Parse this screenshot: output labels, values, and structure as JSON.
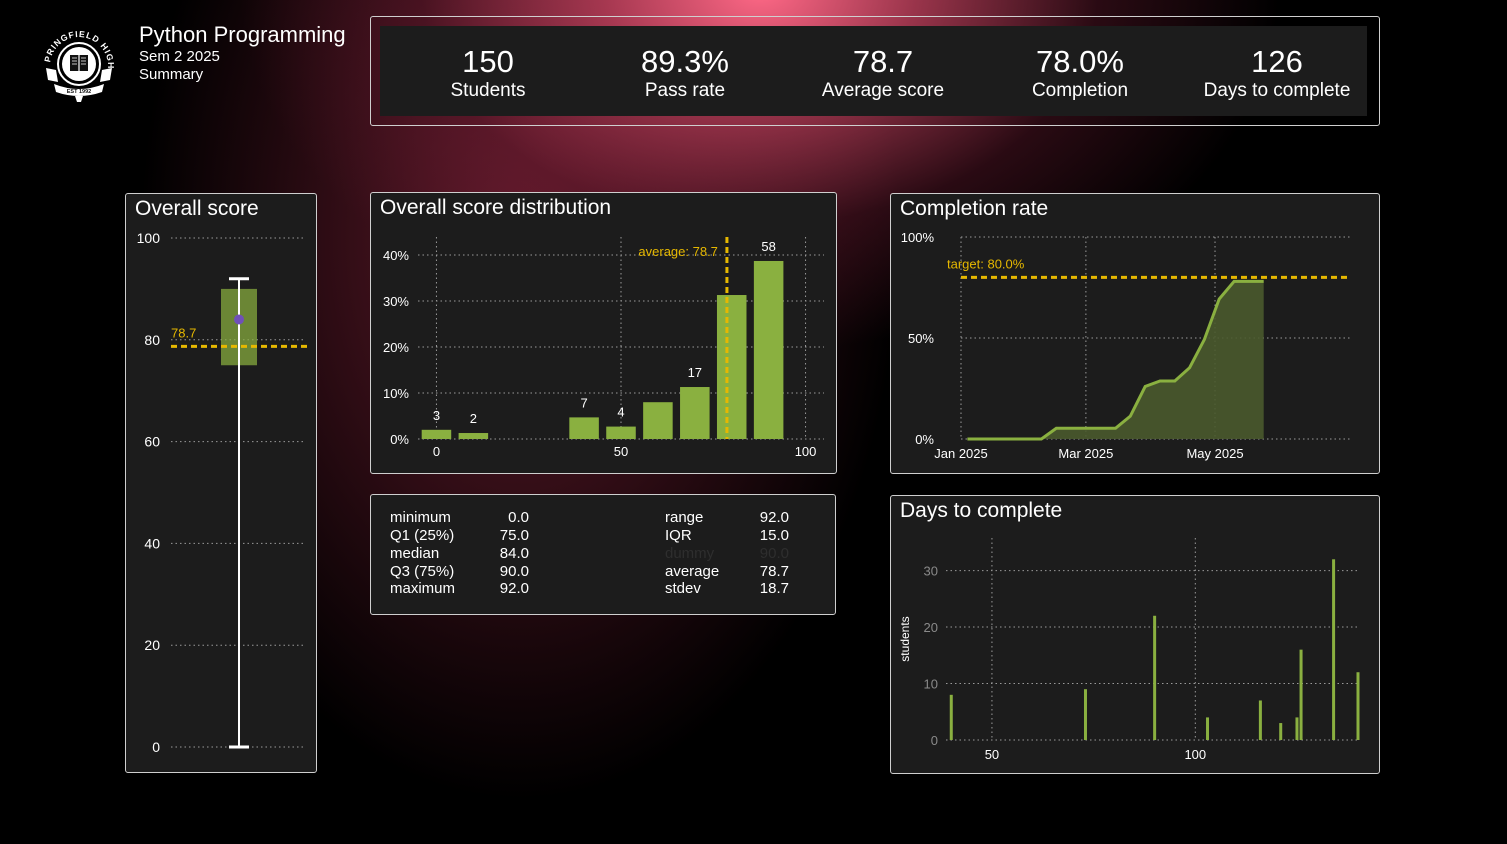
{
  "header": {
    "title": "Python Programming",
    "semester": "Sem 2 2025",
    "subtitle": "Summary",
    "logo_text": "SPRINGFIELD HIGH",
    "logo_est": "EST 1992"
  },
  "kpis": [
    {
      "value": "150",
      "label": "Students"
    },
    {
      "value": "89.3%",
      "label": "Pass rate"
    },
    {
      "value": "78.7",
      "label": "Average score"
    },
    {
      "value": "78.0%",
      "label": "Completion"
    },
    {
      "value": "126",
      "label": "Days to complete"
    }
  ],
  "colors": {
    "bar": "#8ab040",
    "area": "#4a5a2e",
    "target": "#e6b800",
    "median_dot": "#7050b8",
    "grid": "#9a9a9a",
    "panel_bg": "#1c1c1c"
  },
  "stats": {
    "left": [
      {
        "label": "minimum",
        "value": "0.0"
      },
      {
        "label": "Q1 (25%)",
        "value": "75.0"
      },
      {
        "label": "median",
        "value": "84.0"
      },
      {
        "label": "Q3 (75%)",
        "value": "90.0"
      },
      {
        "label": "maximum",
        "value": "92.0"
      }
    ],
    "right": [
      {
        "label": "range",
        "value": "92.0"
      },
      {
        "label": "IQR",
        "value": "15.0"
      },
      {
        "label": "dummy",
        "value": "90.0"
      },
      {
        "label": "average",
        "value": "78.7"
      },
      {
        "label": "stdev",
        "value": "18.7"
      }
    ]
  },
  "chart_data": [
    {
      "id": "box",
      "type": "box",
      "title": "Overall score",
      "ylim": [
        0,
        100
      ],
      "yticks": [
        0,
        20,
        40,
        60,
        80,
        100
      ],
      "min": 0,
      "q1": 75,
      "median": 84,
      "q3": 90,
      "max": 92,
      "average": 78.7,
      "average_label": "78.7"
    },
    {
      "id": "hist",
      "type": "bar",
      "title": "Overall score distribution",
      "xlim": [
        -5,
        105
      ],
      "ylim": [
        0,
        0.4
      ],
      "xticks": [
        0,
        50,
        100
      ],
      "yticks": [
        0,
        0.1,
        0.2,
        0.3,
        0.4
      ],
      "ytick_labels": [
        "0%",
        "10%",
        "20%",
        "30%",
        "40%"
      ],
      "bins": [
        {
          "x0": -4,
          "x1": 4,
          "pct": 0.02,
          "count": 3,
          "label": "3"
        },
        {
          "x0": 6,
          "x1": 14,
          "pct": 0.013,
          "count": 2,
          "label": "2"
        },
        {
          "x0": 36,
          "x1": 44,
          "pct": 0.047,
          "count": 7,
          "label": "7"
        },
        {
          "x0": 46,
          "x1": 54,
          "pct": 0.027,
          "count": 4,
          "label": "4"
        },
        {
          "x0": 56,
          "x1": 64,
          "pct": 0.08,
          "count": 12,
          "label": ""
        },
        {
          "x0": 66,
          "x1": 74,
          "pct": 0.113,
          "count": 17,
          "label": "17"
        },
        {
          "x0": 76,
          "x1": 84,
          "pct": 0.313,
          "count": 47,
          "label": ""
        },
        {
          "x0": 86,
          "x1": 94,
          "pct": 0.387,
          "count": 58,
          "label": "58"
        }
      ],
      "average": 78.7,
      "average_label": "average: 78.7"
    },
    {
      "id": "completion",
      "type": "area",
      "title": "Completion rate",
      "ylim": [
        0,
        1
      ],
      "yticks": [
        0,
        0.5,
        1
      ],
      "ytick_labels": [
        "0%",
        "50%",
        "100%"
      ],
      "xlim": [
        0,
        137
      ],
      "xticks": [
        0,
        59,
        120
      ],
      "xtick_labels": [
        "Jan 2025",
        "Mar 2025",
        "May 2025"
      ],
      "x": [
        3,
        38,
        45,
        73,
        80,
        87,
        94,
        101,
        108,
        115,
        122,
        129,
        136,
        143
      ],
      "y": [
        0,
        0,
        0.053,
        0.053,
        0.113,
        0.26,
        0.287,
        0.287,
        0.353,
        0.493,
        0.693,
        0.78,
        0.78,
        0.78
      ],
      "target": 0.8,
      "target_label": "target: 80.0%"
    },
    {
      "id": "days",
      "type": "bar",
      "title": "Days to complete",
      "ylabel": "students",
      "xlim": [
        36,
        140
      ],
      "ylim": [
        0,
        34
      ],
      "xticks": [
        50,
        100
      ],
      "yticks": [
        0,
        10,
        20,
        30
      ],
      "x": [
        40,
        73,
        90,
        103,
        116,
        121,
        125,
        126,
        134,
        140
      ],
      "values": [
        8,
        9,
        22,
        4,
        7,
        3,
        4,
        16,
        32,
        12
      ]
    }
  ]
}
